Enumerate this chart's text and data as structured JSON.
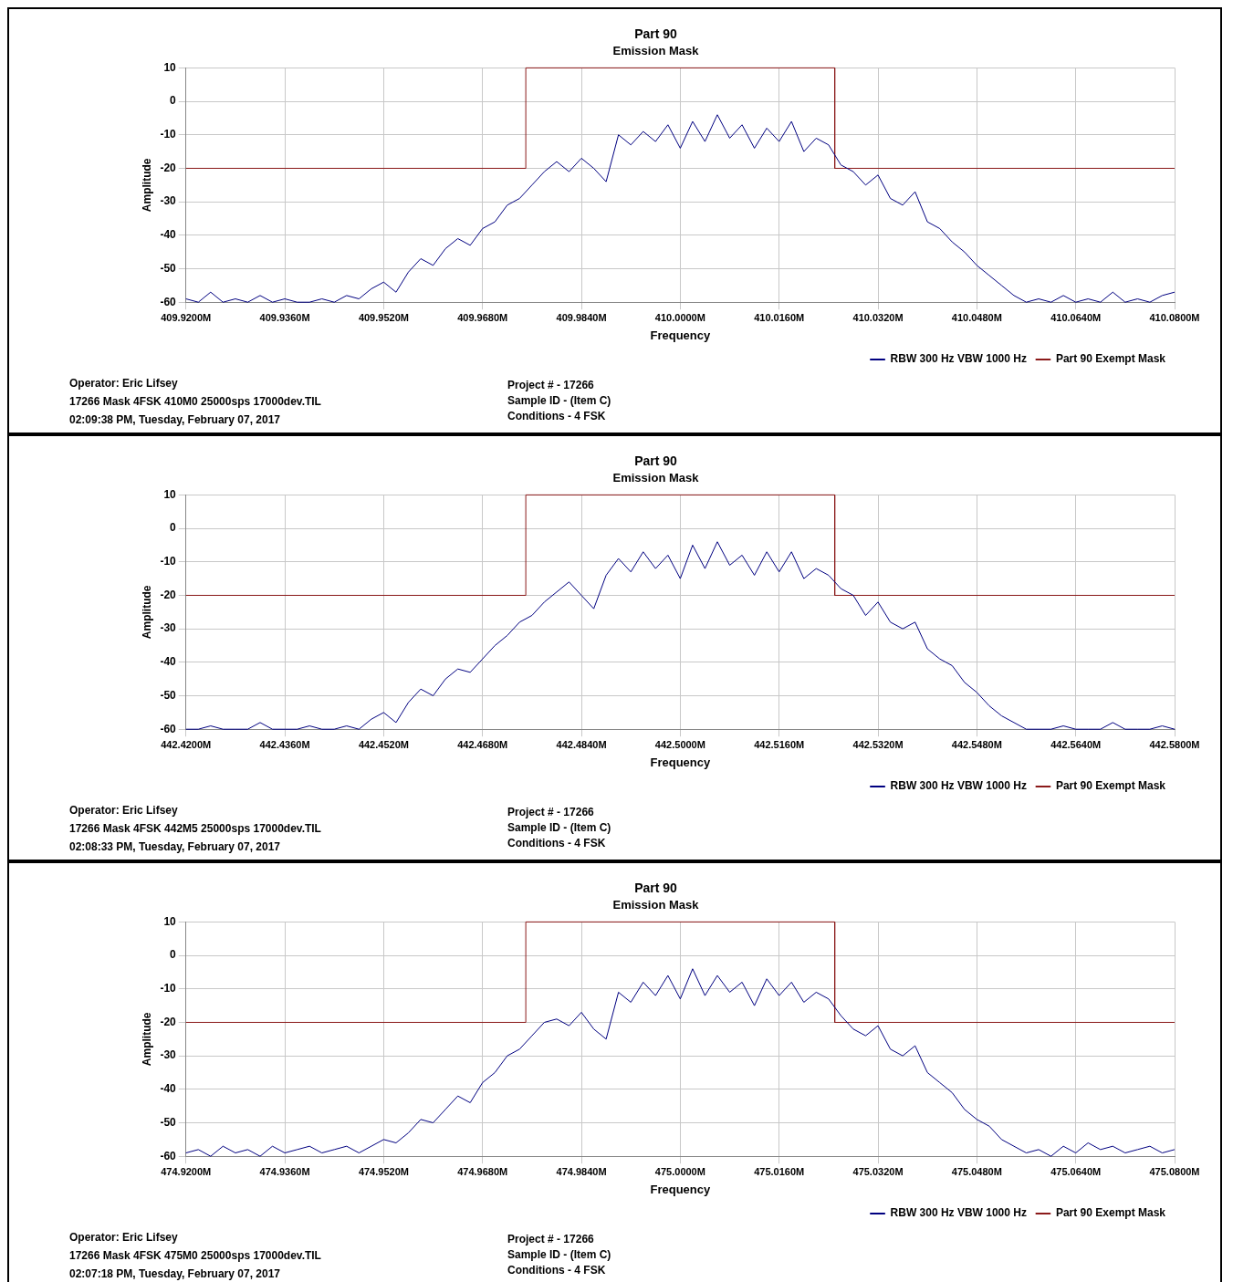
{
  "chart_data": [
    {
      "type": "line",
      "title": "Part 90",
      "subtitle": "Emission Mask",
      "xlabel": "Frequency",
      "ylabel": "Amplitude",
      "grid": true,
      "legend": "bottom right",
      "marker": "none",
      "xlim": [
        409.92,
        410.08
      ],
      "ylim": [
        -60,
        10
      ],
      "yticks": [
        10,
        0,
        -10,
        -20,
        -30,
        -40,
        -50,
        -60
      ],
      "xticks": [
        {
          "value": 409.92,
          "label": "409.9200M"
        },
        {
          "value": 409.936,
          "label": "409.9360M"
        },
        {
          "value": 409.952,
          "label": "409.9520M"
        },
        {
          "value": 409.968,
          "label": "409.9680M"
        },
        {
          "value": 409.984,
          "label": "409.9840M"
        },
        {
          "value": 410.0,
          "label": "410.0000M"
        },
        {
          "value": 410.016,
          "label": "410.0160M"
        },
        {
          "value": 410.032,
          "label": "410.0320M"
        },
        {
          "value": 410.048,
          "label": "410.0480M"
        },
        {
          "value": 410.064,
          "label": "410.0640M"
        },
        {
          "value": 410.08,
          "label": "410.0800M"
        }
      ],
      "series": [
        {
          "name": "RBW 300 Hz VBW 1000 Hz",
          "color": "#000080",
          "type": "line",
          "x": [
            409.92,
            409.922,
            409.924,
            409.926,
            409.928,
            409.93,
            409.932,
            409.934,
            409.936,
            409.938,
            409.94,
            409.942,
            409.944,
            409.946,
            409.948,
            409.95,
            409.952,
            409.954,
            409.956,
            409.958,
            409.96,
            409.962,
            409.964,
            409.966,
            409.968,
            409.97,
            409.972,
            409.974,
            409.976,
            409.978,
            409.98,
            409.982,
            409.984,
            409.986,
            409.988,
            409.99,
            409.992,
            409.994,
            409.996,
            409.998,
            410.0,
            410.002,
            410.004,
            410.006,
            410.008,
            410.01,
            410.012,
            410.014,
            410.016,
            410.018,
            410.02,
            410.022,
            410.024,
            410.026,
            410.028,
            410.03,
            410.032,
            410.034,
            410.036,
            410.038,
            410.04,
            410.042,
            410.044,
            410.046,
            410.048,
            410.05,
            410.052,
            410.054,
            410.056,
            410.058,
            410.06,
            410.062,
            410.064,
            410.066,
            410.068,
            410.07,
            410.072,
            410.074,
            410.076,
            410.078,
            410.08
          ],
          "values": [
            -59,
            -60,
            -57,
            -60,
            -59,
            -60,
            -58,
            -60,
            -59,
            -60,
            -60,
            -59,
            -60,
            -58,
            -59,
            -56,
            -54,
            -57,
            -51,
            -47,
            -49,
            -44,
            -41,
            -43,
            -38,
            -36,
            -31,
            -29,
            -25,
            -21,
            -18,
            -21,
            -17,
            -20,
            -24,
            -10,
            -13,
            -9,
            -12,
            -7,
            -14,
            -6,
            -12,
            -4,
            -11,
            -7,
            -14,
            -8,
            -12,
            -6,
            -15,
            -11,
            -13,
            -19,
            -21,
            -25,
            -22,
            -29,
            -31,
            -27,
            -36,
            -38,
            -42,
            -45,
            -49,
            -52,
            -55,
            -58,
            -60,
            -59,
            -60,
            -58,
            -60,
            -59,
            -60,
            -57,
            -60,
            -59,
            -60,
            -58,
            -57
          ]
        },
        {
          "name": "Part 90 Exempt Mask",
          "color": "#8b1a1a",
          "type": "line",
          "x": [
            409.92,
            409.975,
            409.975,
            410.025,
            410.025,
            410.08
          ],
          "values": [
            -20,
            -20,
            10,
            10,
            -20,
            -20
          ]
        }
      ],
      "annotations": [
        "Operator: Eric Lifsey",
        "17266 Mask 4FSK 410M0 25000sps 17000dev.TIL",
        "02:09:38 PM, Tuesday, February 07, 2017",
        "Project # - 17266",
        "Sample ID - (Item C)",
        "Conditions - 4 FSK"
      ]
    },
    {
      "type": "line",
      "title": "Part 90",
      "subtitle": "Emission Mask",
      "xlabel": "Frequency",
      "ylabel": "Amplitude",
      "grid": true,
      "legend": "bottom right",
      "marker": "none",
      "xlim": [
        442.42,
        442.58
      ],
      "ylim": [
        -60,
        10
      ],
      "yticks": [
        10,
        0,
        -10,
        -20,
        -30,
        -40,
        -50,
        -60
      ],
      "xticks": [
        {
          "value": 442.42,
          "label": "442.4200M"
        },
        {
          "value": 442.436,
          "label": "442.4360M"
        },
        {
          "value": 442.452,
          "label": "442.4520M"
        },
        {
          "value": 442.468,
          "label": "442.4680M"
        },
        {
          "value": 442.484,
          "label": "442.4840M"
        },
        {
          "value": 442.5,
          "label": "442.5000M"
        },
        {
          "value": 442.516,
          "label": "442.5160M"
        },
        {
          "value": 442.532,
          "label": "442.5320M"
        },
        {
          "value": 442.548,
          "label": "442.5480M"
        },
        {
          "value": 442.564,
          "label": "442.5640M"
        },
        {
          "value": 442.58,
          "label": "442.5800M"
        }
      ],
      "series": [
        {
          "name": "RBW 300 Hz VBW 1000 Hz",
          "color": "#000080",
          "type": "line",
          "x": [
            442.42,
            442.422,
            442.424,
            442.426,
            442.428,
            442.43,
            442.432,
            442.434,
            442.436,
            442.438,
            442.44,
            442.442,
            442.444,
            442.446,
            442.448,
            442.45,
            442.452,
            442.454,
            442.456,
            442.458,
            442.46,
            442.462,
            442.464,
            442.466,
            442.468,
            442.47,
            442.472,
            442.474,
            442.476,
            442.478,
            442.48,
            442.482,
            442.484,
            442.486,
            442.488,
            442.49,
            442.492,
            442.494,
            442.496,
            442.498,
            442.5,
            442.502,
            442.504,
            442.506,
            442.508,
            442.51,
            442.512,
            442.514,
            442.516,
            442.518,
            442.52,
            442.522,
            442.524,
            442.526,
            442.528,
            442.53,
            442.532,
            442.534,
            442.536,
            442.538,
            442.54,
            442.542,
            442.544,
            442.546,
            442.548,
            442.55,
            442.552,
            442.554,
            442.556,
            442.558,
            442.56,
            442.562,
            442.564,
            442.566,
            442.568,
            442.57,
            442.572,
            442.574,
            442.576,
            442.578,
            442.58
          ],
          "values": [
            -60,
            -60,
            -59,
            -60,
            -60,
            -60,
            -58,
            -60,
            -60,
            -60,
            -59,
            -60,
            -60,
            -59,
            -60,
            -57,
            -55,
            -58,
            -52,
            -48,
            -50,
            -45,
            -42,
            -43,
            -39,
            -35,
            -32,
            -28,
            -26,
            -22,
            -19,
            -16,
            -20,
            -24,
            -14,
            -9,
            -13,
            -7,
            -12,
            -8,
            -15,
            -5,
            -12,
            -4,
            -11,
            -8,
            -14,
            -7,
            -13,
            -7,
            -15,
            -12,
            -14,
            -18,
            -20,
            -26,
            -22,
            -28,
            -30,
            -28,
            -36,
            -39,
            -41,
            -46,
            -49,
            -53,
            -56,
            -58,
            -60,
            -60,
            -60,
            -59,
            -60,
            -60,
            -60,
            -58,
            -60,
            -60,
            -60,
            -59,
            -60
          ]
        },
        {
          "name": "Part 90 Exempt Mask",
          "color": "#8b1a1a",
          "type": "line",
          "x": [
            442.42,
            442.475,
            442.475,
            442.525,
            442.525,
            442.58
          ],
          "values": [
            -20,
            -20,
            10,
            10,
            -20,
            -20
          ]
        }
      ],
      "annotations": [
        "Operator: Eric Lifsey",
        "17266 Mask 4FSK 442M5 25000sps 17000dev.TIL",
        "02:08:33 PM, Tuesday, February 07, 2017",
        "Project # - 17266",
        "Sample ID - (Item C)",
        "Conditions - 4 FSK"
      ]
    },
    {
      "type": "line",
      "title": "Part 90",
      "subtitle": "Emission Mask",
      "xlabel": "Frequency",
      "ylabel": "Amplitude",
      "grid": true,
      "legend": "bottom right",
      "marker": "none",
      "xlim": [
        474.92,
        475.08
      ],
      "ylim": [
        -60,
        10
      ],
      "yticks": [
        10,
        0,
        -10,
        -20,
        -30,
        -40,
        -50,
        -60
      ],
      "xticks": [
        {
          "value": 474.92,
          "label": "474.9200M"
        },
        {
          "value": 474.936,
          "label": "474.9360M"
        },
        {
          "value": 474.952,
          "label": "474.9520M"
        },
        {
          "value": 474.968,
          "label": "474.9680M"
        },
        {
          "value": 474.984,
          "label": "474.9840M"
        },
        {
          "value": 475.0,
          "label": "475.0000M"
        },
        {
          "value": 475.016,
          "label": "475.0160M"
        },
        {
          "value": 475.032,
          "label": "475.0320M"
        },
        {
          "value": 475.048,
          "label": "475.0480M"
        },
        {
          "value": 475.064,
          "label": "475.0640M"
        },
        {
          "value": 475.08,
          "label": "475.0800M"
        }
      ],
      "series": [
        {
          "name": "RBW 300 Hz VBW 1000 Hz",
          "color": "#000080",
          "type": "line",
          "x": [
            474.92,
            474.922,
            474.924,
            474.926,
            474.928,
            474.93,
            474.932,
            474.934,
            474.936,
            474.938,
            474.94,
            474.942,
            474.944,
            474.946,
            474.948,
            474.95,
            474.952,
            474.954,
            474.956,
            474.958,
            474.96,
            474.962,
            474.964,
            474.966,
            474.968,
            474.97,
            474.972,
            474.974,
            474.976,
            474.978,
            474.98,
            474.982,
            474.984,
            474.986,
            474.988,
            474.99,
            474.992,
            474.994,
            474.996,
            474.998,
            475.0,
            475.002,
            475.004,
            475.006,
            475.008,
            475.01,
            475.012,
            475.014,
            475.016,
            475.018,
            475.02,
            475.022,
            475.024,
            475.026,
            475.028,
            475.03,
            475.032,
            475.034,
            475.036,
            475.038,
            475.04,
            475.042,
            475.044,
            475.046,
            475.048,
            475.05,
            475.052,
            475.054,
            475.056,
            475.058,
            475.06,
            475.062,
            475.064,
            475.066,
            475.068,
            475.07,
            475.072,
            475.074,
            475.076,
            475.078,
            475.08
          ],
          "values": [
            -59,
            -58,
            -60,
            -57,
            -59,
            -58,
            -60,
            -57,
            -59,
            -58,
            -57,
            -59,
            -58,
            -57,
            -59,
            -57,
            -55,
            -56,
            -53,
            -49,
            -50,
            -46,
            -42,
            -44,
            -38,
            -35,
            -30,
            -28,
            -24,
            -20,
            -19,
            -21,
            -17,
            -22,
            -25,
            -11,
            -14,
            -8,
            -12,
            -6,
            -13,
            -4,
            -12,
            -6,
            -11,
            -8,
            -15,
            -7,
            -12,
            -8,
            -14,
            -11,
            -13,
            -18,
            -22,
            -24,
            -21,
            -28,
            -30,
            -27,
            -35,
            -38,
            -41,
            -46,
            -49,
            -51,
            -55,
            -57,
            -59,
            -58,
            -60,
            -57,
            -59,
            -56,
            -58,
            -57,
            -59,
            -58,
            -57,
            -59,
            -58
          ]
        },
        {
          "name": "Part 90 Exempt Mask",
          "color": "#8b1a1a",
          "type": "line",
          "x": [
            474.92,
            474.975,
            474.975,
            475.025,
            475.025,
            475.08
          ],
          "values": [
            -20,
            -20,
            10,
            10,
            -20,
            -20
          ]
        }
      ],
      "annotations": [
        "Operator: Eric Lifsey",
        "17266 Mask 4FSK 475M0 25000sps 17000dev.TIL",
        "02:07:18 PM, Tuesday, February 07, 2017",
        "Project # - 17266",
        "Sample ID - (Item C)",
        "Conditions - 4 FSK"
      ]
    }
  ]
}
